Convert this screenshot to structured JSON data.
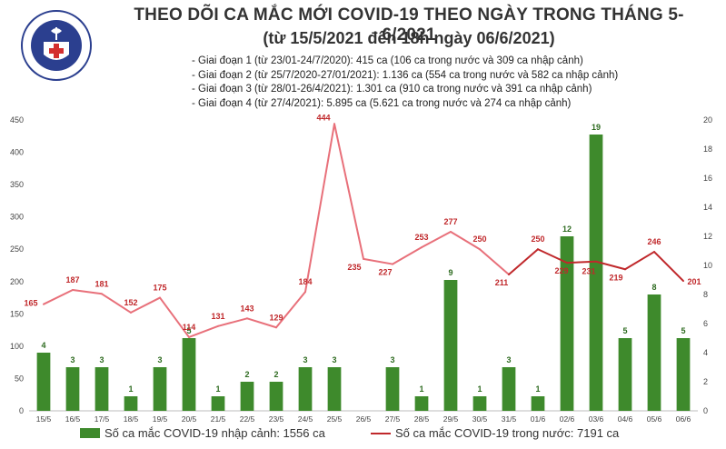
{
  "logo": {
    "ring_text_top": "BỘ Y TẾ",
    "ring_text_bottom": "MINISTRY OF HEALTH"
  },
  "header": {
    "title": "THEO DÕI CA MẮC MỚI COVID-19 THEO NGÀY TRONG THÁNG 5-6/2021",
    "subtitle": "(từ 15/5/2021 đến 18h ngày 06/6/2021)"
  },
  "phases": [
    "- Giai đoạn 1 (từ 23/01-24/7/2020): 415 ca (106 ca trong nước và 309 ca nhập cảnh)",
    "- Giai đoạn 2 (từ 25/7/2020-27/01/2021): 1.136 ca (554 ca trong nước và 582 ca nhập cảnh)",
    "- Giai đoạn 3 (từ 28/01-26/4/2021): 1.301 ca (910 ca trong nước và 391 ca nhập cảnh)",
    "- Giai đoạn 4 (từ 27/4/2021): 5.895 ca (5.621 ca trong nước và 274 ca nhập cảnh)"
  ],
  "legend": {
    "bar_label": "Số ca mắc COVID-19 nhập cảnh: 1556 ca",
    "line_label": "Số ca mắc COVID-19 trong nước: 7191 ca"
  },
  "colors": {
    "bar": "#3e8a2c",
    "line": "#e8707a",
    "line_after": "#c0282b",
    "label_red": "#c0282b",
    "grid": "#d9d9d9"
  },
  "chart_data": {
    "type": "bar",
    "categories": [
      "15/5",
      "16/5",
      "17/5",
      "18/5",
      "19/5",
      "20/5",
      "21/5",
      "22/5",
      "23/5",
      "24/5",
      "25/5",
      "26/5",
      "27/5",
      "28/5",
      "29/5",
      "30/5",
      "31/5",
      "01/6",
      "02/6",
      "03/6",
      "04/6",
      "05/6",
      "06/6"
    ],
    "series": [
      {
        "name": "Số ca mắc COVID-19 nhập cảnh: 1556 ca",
        "type": "bar",
        "axis": "right",
        "values": [
          4,
          3,
          3,
          1,
          3,
          5,
          1,
          2,
          2,
          3,
          3,
          0,
          3,
          1,
          9,
          1,
          3,
          1,
          12,
          19,
          5,
          8,
          5
        ],
        "labels": [
          "4",
          "3",
          "3",
          "1",
          "3",
          "5",
          "1",
          "2",
          "2",
          "3",
          "3",
          "",
          "3",
          "1",
          "9",
          "1",
          "3",
          "1",
          "12",
          "19",
          "5",
          "8",
          "5"
        ]
      },
      {
        "name": "Số ca mắc COVID-19 trong nước: 7191 ca",
        "type": "line",
        "axis": "left",
        "values": [
          165,
          187,
          181,
          152,
          175,
          114,
          131,
          143,
          129,
          184,
          444,
          235,
          227,
          253,
          277,
          250,
          211,
          250,
          229,
          231,
          219,
          246,
          201
        ],
        "labels": [
          "165",
          "187",
          "181",
          "152",
          "175",
          "114",
          "131",
          "143",
          "129",
          "184",
          "444",
          "235",
          "227",
          "253",
          "277",
          "250",
          "211",
          "250",
          "229",
          "231",
          "219",
          "246",
          "201"
        ]
      }
    ],
    "y_left": {
      "min": 0,
      "max": 450,
      "ticks": [
        "0",
        "50",
        "100",
        "150",
        "200",
        "250",
        "300",
        "350",
        "400",
        "450"
      ]
    },
    "y_right": {
      "min": 0,
      "max": 20,
      "ticks": [
        "0",
        "2",
        "4",
        "6",
        "8",
        "10",
        "12",
        "14",
        "16",
        "18",
        "20"
      ]
    },
    "grid": false,
    "legend_position": "bottom"
  }
}
